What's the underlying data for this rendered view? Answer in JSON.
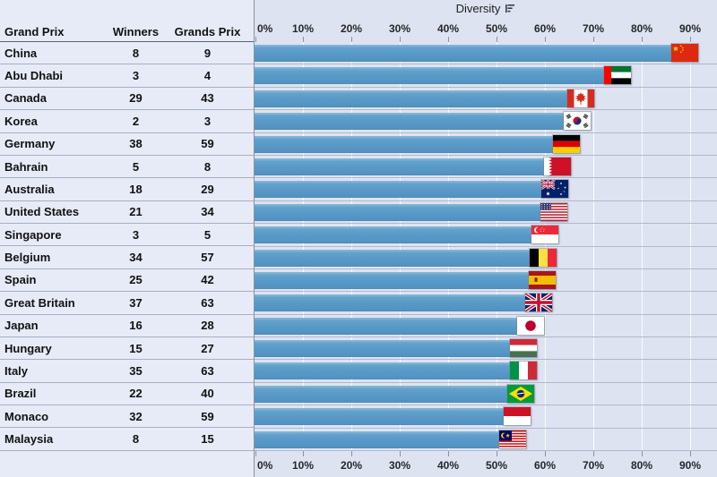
{
  "chart_data": {
    "type": "bar",
    "orientation": "horizontal",
    "title": "Diversity",
    "sort_indicator": "descending",
    "x_axis": {
      "ticks": [
        "0%",
        "10%",
        "20%",
        "30%",
        "40%",
        "50%",
        "60%",
        "70%",
        "80%",
        "90%"
      ],
      "min": 0,
      "max": 95,
      "grid": true,
      "position": "top-and-bottom"
    },
    "columns": [
      "Grand Prix",
      "Winners",
      "Grands Prix"
    ],
    "rows": [
      {
        "grand_prix": "China",
        "winners": 8,
        "grands_prix": 9,
        "diversity_pct": 88.9,
        "flag": "china-flag-icon"
      },
      {
        "grand_prix": "Abu Dhabi",
        "winners": 3,
        "grands_prix": 4,
        "diversity_pct": 75.0,
        "flag": "uae-flag-icon"
      },
      {
        "grand_prix": "Canada",
        "winners": 29,
        "grands_prix": 43,
        "diversity_pct": 67.4,
        "flag": "canada-flag-icon"
      },
      {
        "grand_prix": "Korea",
        "winners": 2,
        "grands_prix": 3,
        "diversity_pct": 66.7,
        "flag": "south-korea-flag-icon"
      },
      {
        "grand_prix": "Germany",
        "winners": 38,
        "grands_prix": 59,
        "diversity_pct": 64.4,
        "flag": "germany-flag-icon"
      },
      {
        "grand_prix": "Bahrain",
        "winners": 5,
        "grands_prix": 8,
        "diversity_pct": 62.5,
        "flag": "bahrain-flag-icon"
      },
      {
        "grand_prix": "Australia",
        "winners": 18,
        "grands_prix": 29,
        "diversity_pct": 62.1,
        "flag": "australia-flag-icon"
      },
      {
        "grand_prix": "United States",
        "winners": 21,
        "grands_prix": 34,
        "diversity_pct": 61.8,
        "flag": "usa-flag-icon"
      },
      {
        "grand_prix": "Singapore",
        "winners": 3,
        "grands_prix": 5,
        "diversity_pct": 60.0,
        "flag": "singapore-flag-icon"
      },
      {
        "grand_prix": "Belgium",
        "winners": 34,
        "grands_prix": 57,
        "diversity_pct": 59.6,
        "flag": "belgium-flag-icon"
      },
      {
        "grand_prix": "Spain",
        "winners": 25,
        "grands_prix": 42,
        "diversity_pct": 59.5,
        "flag": "spain-flag-icon"
      },
      {
        "grand_prix": "Great Britain",
        "winners": 37,
        "grands_prix": 63,
        "diversity_pct": 58.7,
        "flag": "great-britain-flag-icon"
      },
      {
        "grand_prix": "Japan",
        "winners": 16,
        "grands_prix": 28,
        "diversity_pct": 57.1,
        "flag": "japan-flag-icon"
      },
      {
        "grand_prix": "Hungary",
        "winners": 15,
        "grands_prix": 27,
        "diversity_pct": 55.6,
        "flag": "hungary-flag-icon"
      },
      {
        "grand_prix": "Italy",
        "winners": 35,
        "grands_prix": 63,
        "diversity_pct": 55.6,
        "flag": "italy-flag-icon"
      },
      {
        "grand_prix": "Brazil",
        "winners": 22,
        "grands_prix": 40,
        "diversity_pct": 55.0,
        "flag": "brazil-flag-icon"
      },
      {
        "grand_prix": "Monaco",
        "winners": 32,
        "grands_prix": 59,
        "diversity_pct": 54.2,
        "flag": "monaco-flag-icon"
      },
      {
        "grand_prix": "Malaysia",
        "winners": 8,
        "grands_prix": 15,
        "diversity_pct": 53.3,
        "flag": "malaysia-flag-icon"
      }
    ]
  },
  "icons": {
    "sort": "sort-descending-icon"
  },
  "colors": {
    "bar": "#5899C7",
    "table_background": "#E6EBF7",
    "chart_background": "#DDE3F1",
    "gridline": "#FFFFFF",
    "row_separator": "#AEB4C6",
    "text": "#111111"
  }
}
